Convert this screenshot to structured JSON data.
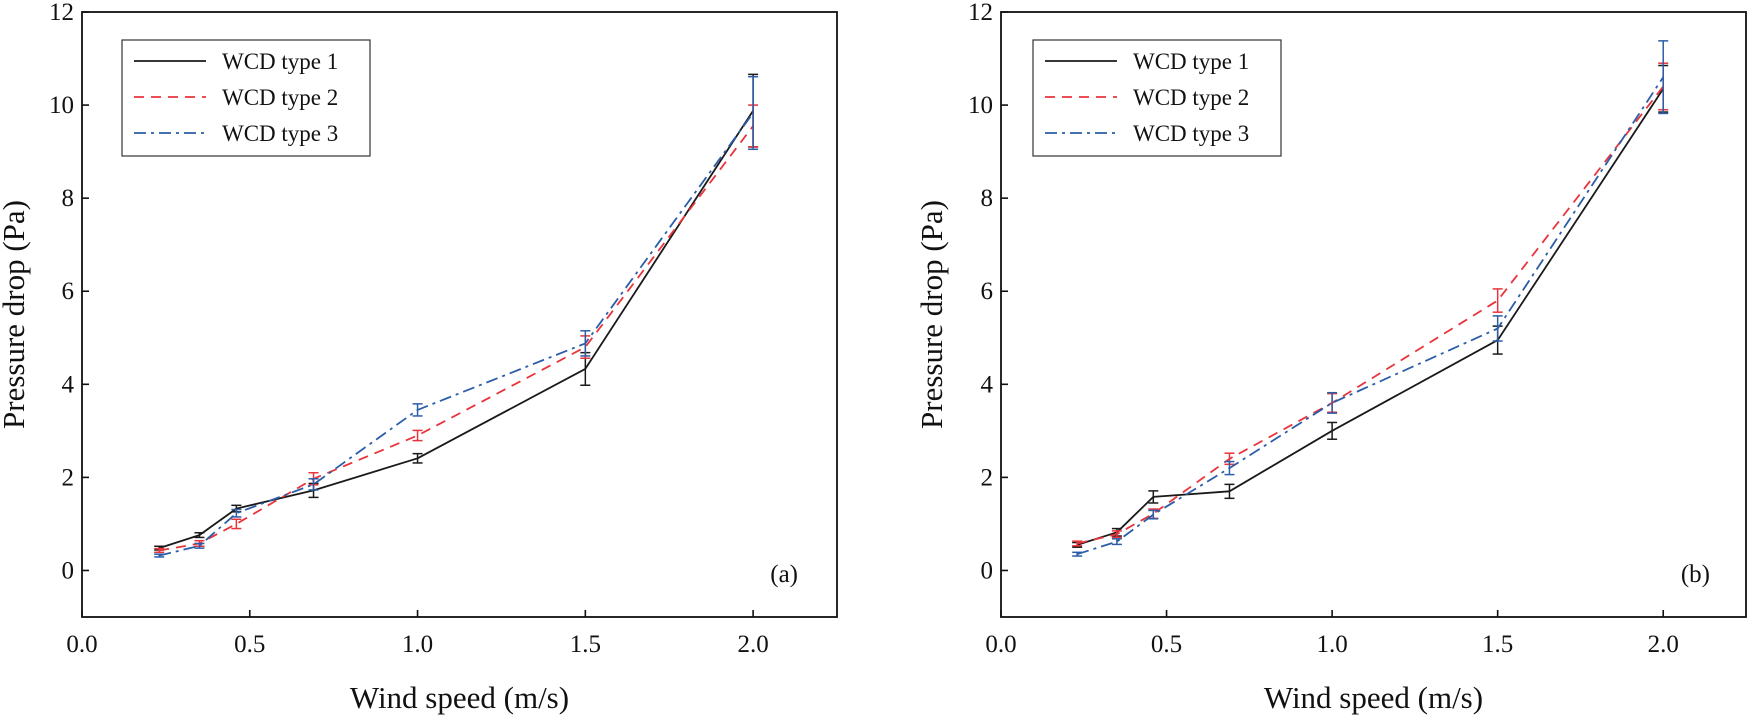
{
  "chart_data": [
    {
      "type": "line",
      "panel_label": "(a)",
      "xlabel": "Wind speed (m/s)",
      "ylabel": "Pressure drop (Pa)",
      "xlim": [
        0.0,
        2.25
      ],
      "ylim": [
        -1.0,
        12.0
      ],
      "xticks": [
        0.0,
        0.5,
        1.0,
        1.5,
        2.0
      ],
      "xtick_labels": [
        "0.0",
        "0.5",
        "1.0",
        "1.5",
        "2.0"
      ],
      "yticks": [
        0,
        2,
        4,
        6,
        8,
        10,
        12
      ],
      "ytick_labels": [
        "0",
        "2",
        "4",
        "6",
        "8",
        "10",
        "12"
      ],
      "legend_position": "top-left",
      "x": [
        0.23,
        0.35,
        0.46,
        0.69,
        1.0,
        1.5,
        2.0
      ],
      "series": [
        {
          "name": "WCD type 1",
          "color": "#1a1a1a",
          "dash": "solid",
          "values": [
            0.48,
            0.76,
            1.33,
            1.72,
            2.41,
            4.33,
            9.88
          ],
          "errors": [
            0.04,
            0.05,
            0.07,
            0.15,
            0.1,
            0.35,
            0.78
          ]
        },
        {
          "name": "WCD type 2",
          "color": "#e8343c",
          "dash": "dashed",
          "values": [
            0.43,
            0.58,
            1.0,
            1.97,
            2.9,
            4.8,
            9.55
          ],
          "errors": [
            0.04,
            0.06,
            0.1,
            0.13,
            0.11,
            0.24,
            0.45
          ]
        },
        {
          "name": "WCD type 3",
          "color": "#2c5ea8",
          "dash": "dashdot",
          "values": [
            0.32,
            0.53,
            1.23,
            1.85,
            3.45,
            4.88,
            9.83
          ],
          "errors": [
            0.03,
            0.05,
            0.08,
            0.12,
            0.13,
            0.27,
            0.78
          ]
        }
      ]
    },
    {
      "type": "line",
      "panel_label": "(b)",
      "xlabel": "Wind speed (m/s)",
      "ylabel": "Pressure drop (Pa)",
      "xlim": [
        0.0,
        2.25
      ],
      "ylim": [
        -1.0,
        12.0
      ],
      "xticks": [
        0.0,
        0.5,
        1.0,
        1.5,
        2.0
      ],
      "xtick_labels": [
        "0.0",
        "0.5",
        "1.0",
        "1.5",
        "2.0"
      ],
      "yticks": [
        0,
        2,
        4,
        6,
        8,
        10,
        12
      ],
      "ytick_labels": [
        "0",
        "2",
        "4",
        "6",
        "8",
        "10",
        "12"
      ],
      "legend_position": "top-left",
      "x": [
        0.23,
        0.35,
        0.46,
        0.69,
        1.0,
        1.5,
        2.0
      ],
      "series": [
        {
          "name": "WCD type 1",
          "color": "#1a1a1a",
          "dash": "solid",
          "values": [
            0.55,
            0.82,
            1.58,
            1.7,
            3.0,
            4.95,
            10.35
          ],
          "errors": [
            0.05,
            0.08,
            0.13,
            0.15,
            0.18,
            0.3,
            0.5
          ]
        },
        {
          "name": "WCD type 2",
          "color": "#e8343c",
          "dash": "dashed",
          "values": [
            0.58,
            0.78,
            1.22,
            2.4,
            3.6,
            5.8,
            10.4
          ],
          "errors": [
            0.05,
            0.07,
            0.1,
            0.12,
            0.2,
            0.25,
            0.5
          ]
        },
        {
          "name": "WCD type 3",
          "color": "#2c5ea8",
          "dash": "dashdot",
          "values": [
            0.35,
            0.62,
            1.2,
            2.2,
            3.6,
            5.2,
            10.6
          ],
          "errors": [
            0.04,
            0.06,
            0.09,
            0.14,
            0.22,
            0.27,
            0.78
          ]
        }
      ]
    }
  ]
}
